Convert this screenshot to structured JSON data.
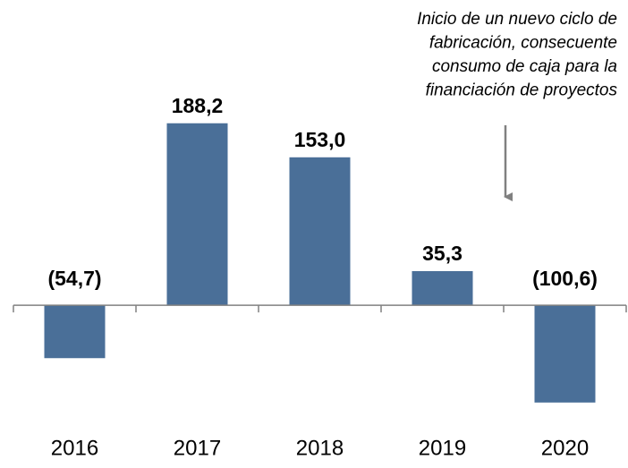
{
  "chart_data": {
    "type": "bar",
    "categories": [
      "2016",
      "2017",
      "2018",
      "2019",
      "2020"
    ],
    "values": [
      -54.7,
      188.2,
      153.0,
      35.3,
      -100.6
    ],
    "value_labels": [
      "(54,7)",
      "188,2",
      "153,0",
      "35,3",
      "(100,6)"
    ],
    "color": "#4a6f98",
    "ylim": [
      -110,
      200
    ],
    "annotation": [
      "Inicio de un nuevo ciclo de",
      "fabricación, consecuente",
      "consumo de caja para la",
      "financiación de proyectos"
    ]
  }
}
